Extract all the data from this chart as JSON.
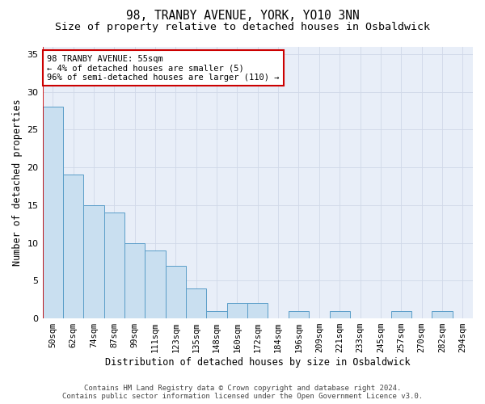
{
  "title": "98, TRANBY AVENUE, YORK, YO10 3NN",
  "subtitle": "Size of property relative to detached houses in Osbaldwick",
  "xlabel": "Distribution of detached houses by size in Osbaldwick",
  "ylabel": "Number of detached properties",
  "categories": [
    "50sqm",
    "62sqm",
    "74sqm",
    "87sqm",
    "99sqm",
    "111sqm",
    "123sqm",
    "135sqm",
    "148sqm",
    "160sqm",
    "172sqm",
    "184sqm",
    "196sqm",
    "209sqm",
    "221sqm",
    "233sqm",
    "245sqm",
    "257sqm",
    "270sqm",
    "282sqm",
    "294sqm"
  ],
  "values": [
    28,
    19,
    15,
    14,
    10,
    9,
    7,
    4,
    1,
    2,
    2,
    0,
    1,
    0,
    1,
    0,
    0,
    1,
    0,
    1,
    0
  ],
  "bar_color": "#c9dff0",
  "bar_edge_color": "#5a9dc8",
  "bar_edge_width": 0.7,
  "grid_color": "#d0d8e8",
  "background_color": "#e8eef8",
  "annotation_box_text": "98 TRANBY AVENUE: 55sqm\n← 4% of detached houses are smaller (5)\n96% of semi-detached houses are larger (110) →",
  "annotation_box_color": "#ffffff",
  "annotation_box_edge_color": "#cc0000",
  "ylim": [
    0,
    36
  ],
  "yticks": [
    0,
    5,
    10,
    15,
    20,
    25,
    30,
    35
  ],
  "footer_line1": "Contains HM Land Registry data © Crown copyright and database right 2024.",
  "footer_line2": "Contains public sector information licensed under the Open Government Licence v3.0.",
  "title_fontsize": 10.5,
  "subtitle_fontsize": 9.5,
  "axis_label_fontsize": 8.5,
  "tick_fontsize": 7.5,
  "annotation_fontsize": 7.5,
  "footer_fontsize": 6.5,
  "fig_bg": "#ffffff"
}
